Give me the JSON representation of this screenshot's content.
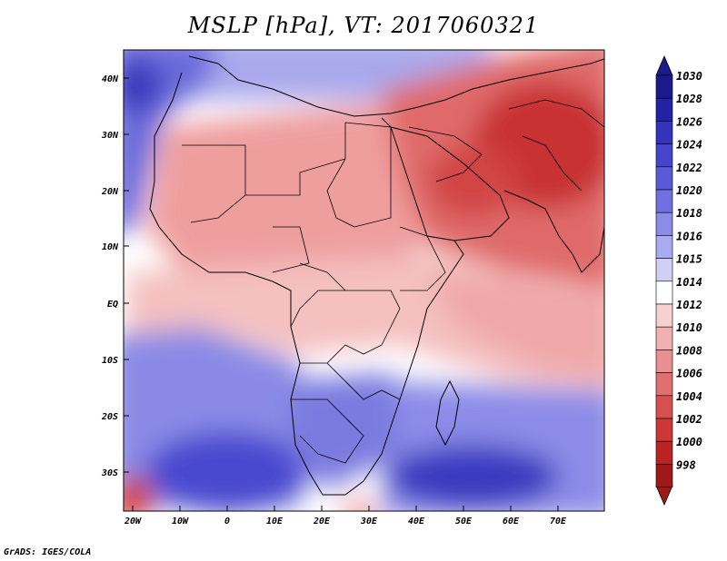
{
  "title": "MSLP [hPa], VT: 2017060321",
  "credit": "GrADS: IGES/COLA",
  "lat_labels": [
    "40N",
    "30N",
    "20N",
    "10N",
    "EQ",
    "10S",
    "20S",
    "30S"
  ],
  "lon_labels": [
    "20W",
    "10W",
    "0",
    "10E",
    "20E",
    "30E",
    "40E",
    "50E",
    "60E",
    "70E"
  ],
  "colorbar": {
    "levels": [
      "1030",
      "1028",
      "1026",
      "1024",
      "1022",
      "1020",
      "1018",
      "1016",
      "1015",
      "1014",
      "1012",
      "1010",
      "1008",
      "1006",
      "1004",
      "1002",
      "1000",
      "998"
    ],
    "colors": [
      "#1a1a8c",
      "#2222a6",
      "#3333bb",
      "#4444cc",
      "#5a5ad6",
      "#7070e0",
      "#8c8ce8",
      "#ababf0",
      "#d0d0f7",
      "#ffffff",
      "#f7d0d0",
      "#f2b0b0",
      "#e89090",
      "#e07070",
      "#d65050",
      "#cc3838",
      "#bb2222",
      "#a01818"
    ]
  }
}
